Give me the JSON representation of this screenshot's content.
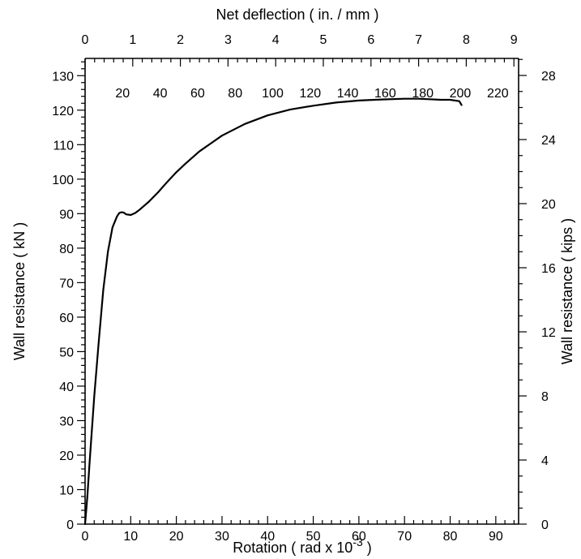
{
  "chart_data": {
    "type": "line",
    "grid": false,
    "x_bottom": {
      "label": "Rotation ( rad x 10",
      "label_sup": "-3",
      "label_end": " )",
      "range": [
        0,
        95
      ],
      "ticks": [
        0,
        10,
        20,
        30,
        40,
        50,
        60,
        70,
        80,
        90
      ],
      "tick_labels": [
        "0",
        "10",
        "20",
        "30",
        "40",
        "50",
        "60",
        "70",
        "80",
        "90"
      ],
      "minor_step": 2
    },
    "x_top_in": {
      "label": "Net deflection ( in. / mm )",
      "unit": "in.",
      "ticks": [
        0,
        1,
        2,
        3,
        4,
        5,
        6,
        7,
        8,
        9
      ],
      "tick_labels": [
        "0",
        "1",
        "2",
        "3",
        "4",
        "5",
        "6",
        "7",
        "8",
        "9"
      ],
      "minor_step": 0.2
    },
    "x_top_mm": {
      "unit": "mm",
      "ticks": [
        20,
        40,
        60,
        80,
        100,
        120,
        140,
        160,
        180,
        200,
        220
      ],
      "tick_labels": [
        "20",
        "40",
        "60",
        "80",
        "100",
        "120",
        "140",
        "160",
        "180",
        "200",
        "220"
      ]
    },
    "y_left": {
      "label": "Wall resistance ( kN )",
      "range": [
        0,
        135
      ],
      "ticks": [
        0,
        10,
        20,
        30,
        40,
        50,
        60,
        70,
        80,
        90,
        100,
        110,
        120,
        130
      ],
      "tick_labels": [
        "0",
        "10",
        "20",
        "30",
        "40",
        "50",
        "60",
        "70",
        "80",
        "90",
        "100",
        "110",
        "120",
        "130"
      ],
      "minor_step": 2
    },
    "y_right": {
      "label": "Wall resistance ( kips )",
      "ticks": [
        0,
        4,
        8,
        12,
        16,
        20,
        24,
        28
      ],
      "tick_labels": [
        "0",
        "4",
        "8",
        "12",
        "16",
        "20",
        "24",
        "28"
      ],
      "minor_step": 1
    },
    "series": [
      {
        "x": [
          0,
          0.5,
          1,
          2,
          3,
          4,
          5,
          6,
          7,
          7.5,
          8,
          8.5,
          9,
          10,
          11,
          12,
          14,
          16,
          18,
          20,
          22,
          25,
          30,
          35,
          40,
          45,
          50,
          55,
          60,
          65,
          70,
          73,
          75,
          78,
          80,
          82,
          82.5
        ],
        "y": [
          0,
          8,
          18,
          37,
          53,
          68,
          79,
          86,
          89.2,
          90.2,
          90.4,
          90.3,
          89.8,
          89.6,
          90.2,
          91.2,
          93.5,
          96.2,
          99.2,
          102,
          104.5,
          108,
          112.6,
          116,
          118.5,
          120.2,
          121.3,
          122.2,
          122.8,
          123.1,
          123.3,
          123.3,
          123.2,
          123,
          123,
          122.6,
          121.5
        ]
      }
    ]
  }
}
